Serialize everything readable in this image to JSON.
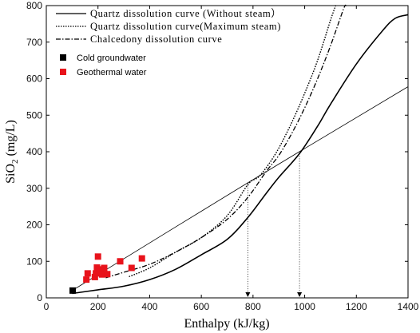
{
  "chart_data": {
    "type": "line",
    "title": "",
    "xlabel": "Enthalpy (kJ/kg)",
    "ylabel": {
      "main": "SiO",
      "sub": "2",
      "unit": " (mg/L)"
    },
    "xlim": [
      0,
      1400
    ],
    "ylim": [
      0,
      800
    ],
    "xticks": [
      0,
      200,
      400,
      600,
      800,
      1000,
      1200,
      1400
    ],
    "yticks": [
      0,
      100,
      200,
      300,
      400,
      500,
      600,
      700,
      800
    ],
    "grid": false,
    "legend_position": "top-left",
    "series": [
      {
        "name": "Quartz dissolution curve (Without steam）",
        "style": "solid",
        "points": [
          [
            100,
            12
          ],
          [
            200,
            22
          ],
          [
            300,
            32
          ],
          [
            400,
            50
          ],
          [
            500,
            78
          ],
          [
            600,
            118
          ],
          [
            700,
            160
          ],
          [
            780,
            220
          ],
          [
            850,
            285
          ],
          [
            900,
            330
          ],
          [
            980,
            395
          ],
          [
            1050,
            470
          ],
          [
            1100,
            530
          ],
          [
            1200,
            640
          ],
          [
            1300,
            730
          ],
          [
            1350,
            765
          ],
          [
            1400,
            775
          ]
        ]
      },
      {
        "name": "Quartz dissolution curve(Maximum steam)",
        "style": "dotted",
        "points": [
          [
            320,
            58
          ],
          [
            400,
            82
          ],
          [
            500,
            125
          ],
          [
            600,
            165
          ],
          [
            700,
            225
          ],
          [
            780,
            310
          ],
          [
            820,
            330
          ],
          [
            860,
            365
          ],
          [
            900,
            410
          ],
          [
            950,
            480
          ],
          [
            1000,
            560
          ],
          [
            1050,
            650
          ],
          [
            1100,
            760
          ],
          [
            1120,
            800
          ]
        ]
      },
      {
        "name": "Chalcedony dissolution curve",
        "style": "dashdot",
        "points": [
          [
            230,
            55
          ],
          [
            300,
            70
          ],
          [
            400,
            92
          ],
          [
            500,
            125
          ],
          [
            600,
            165
          ],
          [
            700,
            215
          ],
          [
            780,
            275
          ],
          [
            850,
            345
          ],
          [
            900,
            390
          ],
          [
            950,
            450
          ],
          [
            1000,
            520
          ],
          [
            1050,
            600
          ],
          [
            1100,
            690
          ],
          [
            1150,
            790
          ],
          [
            1160,
            800
          ]
        ]
      },
      {
        "name": "",
        "style": "thin",
        "points": [
          [
            100,
            20
          ],
          [
            780,
            315
          ],
          [
            1400,
            578
          ]
        ]
      },
      {
        "name": "Cold groundwater",
        "style": "marker-square",
        "color": "#000000",
        "points": [
          [
            102,
            20
          ]
        ]
      },
      {
        "name": "Geothermal water",
        "style": "marker-square",
        "color": "#e8131b",
        "points": [
          [
            155,
            50
          ],
          [
            160,
            67
          ],
          [
            188,
            57
          ],
          [
            192,
            67
          ],
          [
            196,
            83
          ],
          [
            200,
            113
          ],
          [
            204,
            78
          ],
          [
            210,
            74
          ],
          [
            216,
            64
          ],
          [
            224,
            82
          ],
          [
            236,
            65
          ],
          [
            286,
            100
          ],
          [
            330,
            82
          ],
          [
            370,
            108
          ]
        ]
      }
    ],
    "guides": [
      {
        "x": 780,
        "y": 315
      },
      {
        "x": 980,
        "y": 395
      }
    ]
  }
}
